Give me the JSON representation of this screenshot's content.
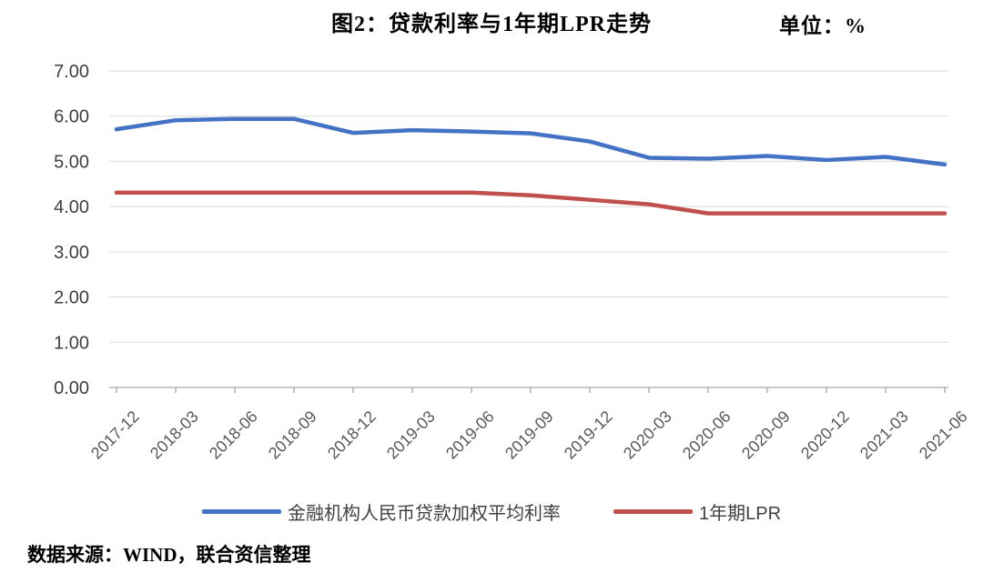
{
  "header": {
    "title": "图2：贷款利率与1年期LPR走势",
    "unit_label": "单位：%"
  },
  "chart_data": {
    "type": "line",
    "title": "图2：贷款利率与1年期LPR走势",
    "unit": "%",
    "categories": [
      "2017-12",
      "2018-03",
      "2018-06",
      "2018-09",
      "2018-12",
      "2019-03",
      "2019-06",
      "2019-09",
      "2019-12",
      "2020-03",
      "2020-06",
      "2020-09",
      "2020-12",
      "2021-03",
      "2021-06"
    ],
    "series": [
      {
        "name": "金融机构人民币贷款加权平均利率",
        "color": "#4472C4",
        "values": [
          5.71,
          5.91,
          5.94,
          5.94,
          5.63,
          5.69,
          5.66,
          5.62,
          5.44,
          5.08,
          5.06,
          5.12,
          5.03,
          5.1,
          4.93
        ]
      },
      {
        "name": "1年期LPR",
        "color": "#C0504D",
        "values": [
          4.31,
          4.31,
          4.31,
          4.31,
          4.31,
          4.31,
          4.31,
          4.25,
          4.15,
          4.05,
          3.85,
          3.85,
          3.85,
          3.85,
          3.85
        ]
      }
    ],
    "ylim": [
      0,
      7
    ],
    "ytick_step": 1,
    "ytick_decimals": 2,
    "xlabel_rotation": -45,
    "grid": true,
    "gridline_color": "#d9d9d9",
    "axis_color": "#a6a6a6",
    "legend_position": "bottom"
  },
  "source_note": "数据来源：WIND，联合资信整理"
}
